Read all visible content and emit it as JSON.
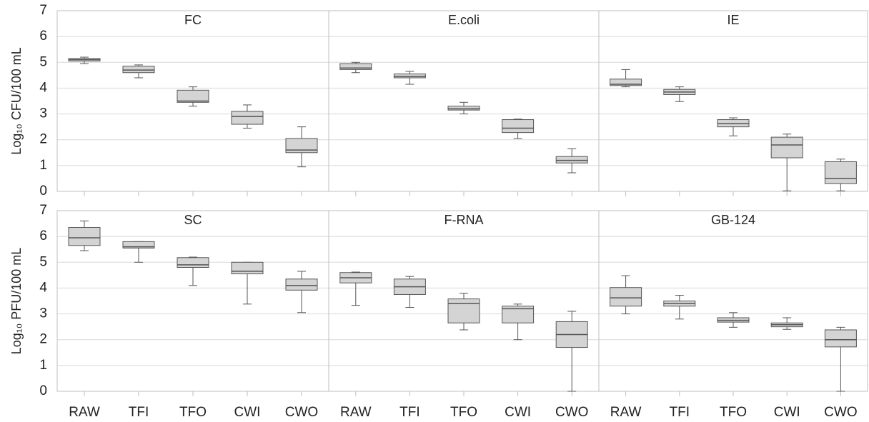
{
  "chart_data": [
    {
      "type": "box",
      "title": "FC",
      "ylabel": "Log₁₀ CFU/100 mL",
      "ytick_labels": true,
      "ylim": [
        0,
        7
      ],
      "yticks": [
        0,
        1,
        2,
        3,
        4,
        5,
        6,
        7
      ],
      "grid": true,
      "color": "#d4d4d4",
      "categories": [
        null,
        null,
        null,
        null,
        null
      ],
      "boxes": [
        {
          "min": 4.95,
          "q1": 5.05,
          "median": 5.1,
          "q3": 5.15,
          "max": 5.2
        },
        {
          "min": 4.4,
          "q1": 4.6,
          "median": 4.7,
          "q3": 4.85,
          "max": 4.9
        },
        {
          "min": 3.3,
          "q1": 3.45,
          "median": 3.5,
          "q3": 3.92,
          "max": 4.05
        },
        {
          "min": 2.45,
          "q1": 2.6,
          "median": 2.9,
          "q3": 3.1,
          "max": 3.35
        },
        {
          "min": 0.95,
          "q1": 1.5,
          "median": 1.6,
          "q3": 2.05,
          "max": 2.5
        }
      ]
    },
    {
      "type": "box",
      "title": "E.coli",
      "ytick_labels": false,
      "ylim": [
        0,
        7
      ],
      "yticks": [
        0,
        1,
        2,
        3,
        4,
        5,
        6,
        7
      ],
      "grid": true,
      "color": "#d4d4d4",
      "categories": [
        null,
        null,
        null,
        null,
        null
      ],
      "boxes": [
        {
          "min": 4.6,
          "q1": 4.72,
          "median": 4.78,
          "q3": 4.95,
          "max": 5.0
        },
        {
          "min": 4.15,
          "q1": 4.4,
          "median": 4.45,
          "q3": 4.55,
          "max": 4.65
        },
        {
          "min": 3.0,
          "q1": 3.15,
          "median": 3.2,
          "q3": 3.3,
          "max": 3.45
        },
        {
          "min": 2.05,
          "q1": 2.28,
          "median": 2.45,
          "q3": 2.78,
          "max": 2.8
        },
        {
          "min": 0.72,
          "q1": 1.1,
          "median": 1.2,
          "q3": 1.35,
          "max": 1.65
        }
      ]
    },
    {
      "type": "box",
      "title": "IE",
      "ytick_labels": false,
      "ylim": [
        0,
        7
      ],
      "yticks": [
        0,
        1,
        2,
        3,
        4,
        5,
        6,
        7
      ],
      "grid": true,
      "color": "#d4d4d4",
      "categories": [
        null,
        null,
        null,
        null,
        null
      ],
      "boxes": [
        {
          "min": 4.05,
          "q1": 4.1,
          "median": 4.15,
          "q3": 4.35,
          "max": 4.72
        },
        {
          "min": 3.48,
          "q1": 3.75,
          "median": 3.85,
          "q3": 3.95,
          "max": 4.05
        },
        {
          "min": 2.15,
          "q1": 2.5,
          "median": 2.62,
          "q3": 2.78,
          "max": 2.85
        },
        {
          "min": 0.02,
          "q1": 1.3,
          "median": 1.8,
          "q3": 2.1,
          "max": 2.22
        },
        {
          "min": 0.02,
          "q1": 0.3,
          "median": 0.5,
          "q3": 1.15,
          "max": 1.25
        }
      ]
    },
    {
      "type": "box",
      "title": "SC",
      "ylabel": "Log₁₀ PFU/100 mL",
      "ytick_labels": true,
      "ylim": [
        0,
        7
      ],
      "yticks": [
        0,
        1,
        2,
        3,
        4,
        5,
        6,
        7
      ],
      "grid": true,
      "color": "#d4d4d4",
      "categories": [
        "RAW",
        "TFI",
        "TFO",
        "CWI",
        "CWO"
      ],
      "boxes": [
        {
          "min": 5.45,
          "q1": 5.65,
          "median": 5.95,
          "q3": 6.35,
          "max": 6.6
        },
        {
          "min": 5.0,
          "q1": 5.55,
          "median": 5.6,
          "q3": 5.8,
          "max": 5.8
        },
        {
          "min": 4.1,
          "q1": 4.8,
          "median": 4.9,
          "q3": 5.18,
          "max": 5.2
        },
        {
          "min": 3.38,
          "q1": 4.55,
          "median": 4.65,
          "q3": 5.0,
          "max": 5.0
        },
        {
          "min": 3.05,
          "q1": 3.92,
          "median": 4.1,
          "q3": 4.35,
          "max": 4.65
        }
      ]
    },
    {
      "type": "box",
      "title": "F-RNA",
      "ytick_labels": false,
      "ylim": [
        0,
        7
      ],
      "yticks": [
        0,
        1,
        2,
        3,
        4,
        5,
        6,
        7
      ],
      "grid": true,
      "color": "#d4d4d4",
      "categories": [
        "RAW",
        "TFI",
        "TFO",
        "CWI",
        "CWO"
      ],
      "boxes": [
        {
          "min": 3.33,
          "q1": 4.2,
          "median": 4.4,
          "q3": 4.6,
          "max": 4.62
        },
        {
          "min": 3.25,
          "q1": 3.75,
          "median": 4.05,
          "q3": 4.35,
          "max": 4.45
        },
        {
          "min": 2.38,
          "q1": 2.65,
          "median": 3.4,
          "q3": 3.58,
          "max": 3.8
        },
        {
          "min": 2.0,
          "q1": 2.65,
          "median": 3.2,
          "q3": 3.3,
          "max": 3.38
        },
        {
          "min": 0,
          "q1": 1.7,
          "median": 2.2,
          "q3": 2.7,
          "max": 3.1
        }
      ]
    },
    {
      "type": "box",
      "title": "GB-124",
      "ytick_labels": false,
      "ylim": [
        0,
        7
      ],
      "yticks": [
        0,
        1,
        2,
        3,
        4,
        5,
        6,
        7
      ],
      "grid": true,
      "color": "#d4d4d4",
      "categories": [
        "RAW",
        "TFI",
        "TFO",
        "CWI",
        "CWO"
      ],
      "boxes": [
        {
          "min": 3.0,
          "q1": 3.3,
          "median": 3.62,
          "q3": 4.02,
          "max": 4.48
        },
        {
          "min": 2.8,
          "q1": 3.3,
          "median": 3.4,
          "q3": 3.5,
          "max": 3.72
        },
        {
          "min": 2.48,
          "q1": 2.68,
          "median": 2.75,
          "q3": 2.85,
          "max": 3.05
        },
        {
          "min": 2.4,
          "q1": 2.5,
          "median": 2.58,
          "q3": 2.65,
          "max": 2.85
        },
        {
          "min": 0,
          "q1": 1.72,
          "median": 2.0,
          "q3": 2.38,
          "max": 2.48
        }
      ]
    }
  ]
}
